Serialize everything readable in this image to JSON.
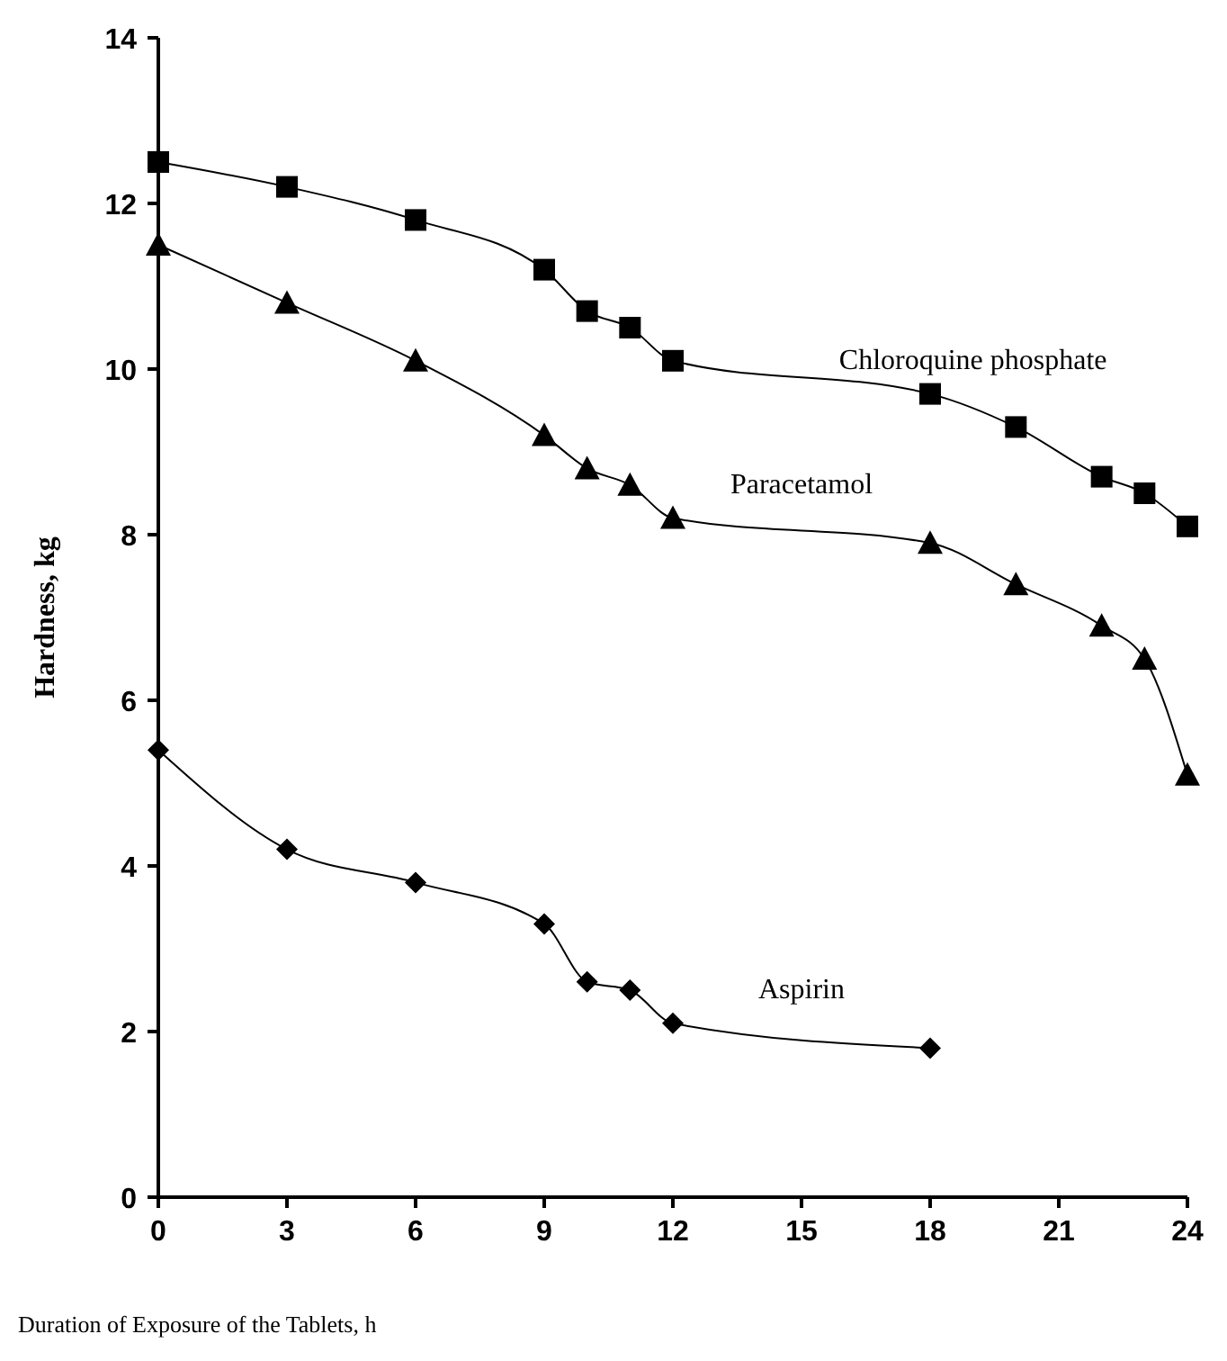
{
  "chart_data": {
    "type": "line",
    "xlabel": "Duration of Exposure of the Tablets, h",
    "ylabel": "Hardness, kg",
    "xlim": [
      0,
      24
    ],
    "xticks": [
      0,
      3,
      6,
      9,
      12,
      15,
      18,
      21,
      24
    ],
    "ylim": [
      0,
      14
    ],
    "yticks": [
      0,
      2,
      4,
      6,
      8,
      10,
      12,
      14
    ],
    "grid": false,
    "series": [
      {
        "name": "Chloroquine phosphate",
        "color": "#000000",
        "marker": "square",
        "x": [
          0,
          3,
          6,
          9,
          10,
          11,
          12,
          18,
          20,
          22,
          23,
          24
        ],
        "values": [
          12.5,
          12.2,
          11.8,
          11.2,
          10.7,
          10.5,
          10.1,
          9.7,
          9.3,
          8.7,
          8.5,
          8.1
        ]
      },
      {
        "name": "Paracetamol",
        "color": "#000000",
        "marker": "triangle",
        "x": [
          0,
          3,
          6,
          9,
          10,
          11,
          12,
          18,
          20,
          22,
          23,
          24
        ],
        "values": [
          11.5,
          10.8,
          10.1,
          9.2,
          8.8,
          8.6,
          8.2,
          7.9,
          7.4,
          6.9,
          6.5,
          5.1
        ]
      },
      {
        "name": "Aspirin",
        "color": "#000000",
        "marker": "diamond",
        "x": [
          0,
          3,
          6,
          9,
          10,
          11,
          12,
          18
        ],
        "values": [
          5.4,
          4.2,
          3.8,
          3.3,
          2.6,
          2.5,
          2.1,
          1.8
        ]
      }
    ]
  }
}
